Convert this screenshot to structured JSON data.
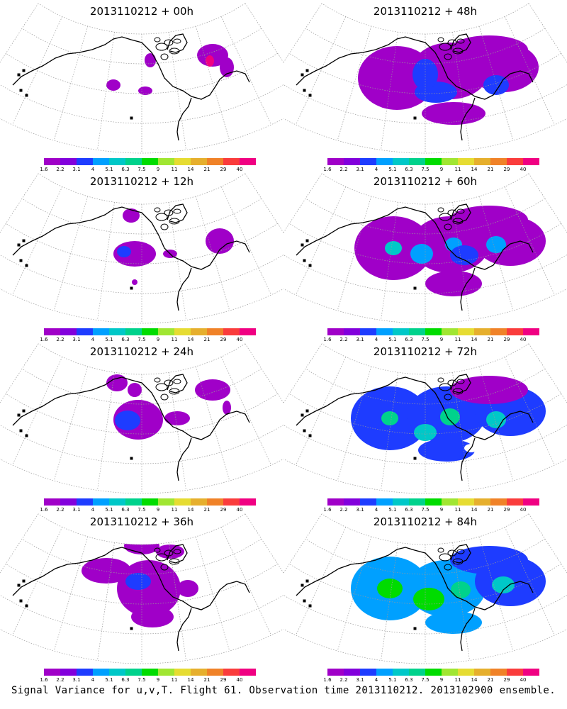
{
  "panels": [
    {
      "title": "2013110212 + 00h"
    },
    {
      "title": "2013110212 + 48h"
    },
    {
      "title": "2013110212 + 12h"
    },
    {
      "title": "2013110212 + 60h"
    },
    {
      "title": "2013110212 + 24h"
    },
    {
      "title": "2013110212 + 72h"
    },
    {
      "title": "2013110212 + 36h"
    },
    {
      "title": "2013110212 + 84h"
    }
  ],
  "colorbar": {
    "labels": [
      "1.6",
      "2.2",
      "3.1",
      "4",
      "5.1",
      "6.3",
      "7.5",
      "9",
      "11",
      "14",
      "21",
      "29",
      "40"
    ],
    "colors": [
      "#a000c8",
      "#8200dc",
      "#1e3cff",
      "#00a0ff",
      "#00c8c8",
      "#00d28c",
      "#00dc00",
      "#a0e632",
      "#e6dc32",
      "#e6af2d",
      "#f08228",
      "#fa3c3c",
      "#f00082"
    ]
  },
  "footer": "Signal Variance for u,v,T. Flight 61. Observation time 2013110212. 2013102900 ensemble."
}
